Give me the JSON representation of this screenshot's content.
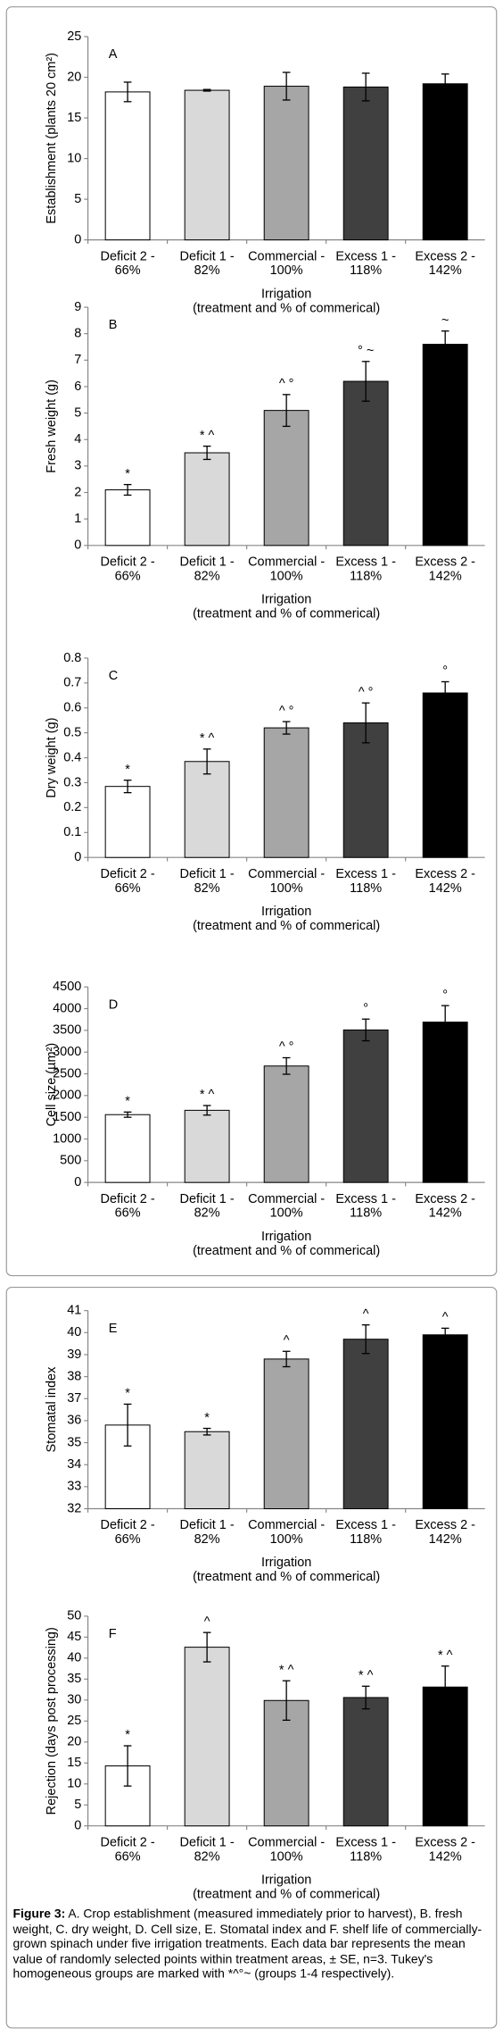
{
  "chart_data": [
    {
      "type": "bar",
      "panel": "A",
      "ylabel": "Establishment (plants 20 cm²)",
      "xlabel": [
        "Irrigation",
        "(treatment and % of commerical)"
      ],
      "categories": [
        [
          "Deficit 2 -",
          "66%"
        ],
        [
          "Deficit 1 -",
          "82%"
        ],
        [
          "Commercial -",
          "100%"
        ],
        [
          "Excess 1 -",
          "118%"
        ],
        [
          "Excess 2 -",
          "142%"
        ]
      ],
      "values": [
        18.2,
        18.4,
        18.9,
        18.8,
        19.2
      ],
      "errors": [
        1.2,
        0.1,
        1.7,
        1.7,
        1.2
      ],
      "colors": [
        "#ffffff",
        "#d9d9d9",
        "#a6a6a6",
        "#404040",
        "#000000"
      ],
      "ylim": [
        0,
        25
      ],
      "yticks": [
        0,
        5,
        10,
        15,
        20,
        25
      ]
    },
    {
      "type": "bar",
      "panel": "B",
      "ylabel": "Fresh weight (g)",
      "xlabel": [
        "Irrigation",
        "(treatment  and % of commerical)"
      ],
      "categories": [
        [
          "Deficit 2 -",
          "66%"
        ],
        [
          "Deficit 1 -",
          "82%"
        ],
        [
          "Commercial -",
          "100%"
        ],
        [
          "Excess 1 -",
          "118%"
        ],
        [
          "Excess 2 -",
          "142%"
        ]
      ],
      "values": [
        2.1,
        3.5,
        5.1,
        6.2,
        7.6
      ],
      "errors": [
        0.2,
        0.25,
        0.6,
        0.75,
        0.5
      ],
      "groups": [
        "*",
        "* ^",
        "^ °",
        "° ~",
        "~"
      ],
      "colors": [
        "#ffffff",
        "#d9d9d9",
        "#a6a6a6",
        "#404040",
        "#000000"
      ],
      "ylim": [
        0,
        9
      ],
      "yticks": [
        0,
        1,
        2,
        3,
        4,
        5,
        6,
        7,
        8,
        9
      ]
    },
    {
      "type": "bar",
      "panel": "C",
      "ylabel": "Dry weight (g)",
      "xlabel": [
        "Irrigation",
        "(treatment  and % of commerical)"
      ],
      "categories": [
        [
          "Deficit 2 -",
          "66%"
        ],
        [
          "Deficit 1 -",
          "82%"
        ],
        [
          "Commercial -",
          "100%"
        ],
        [
          "Excess 1 -",
          "118%"
        ],
        [
          "Excess 2 -",
          "142%"
        ]
      ],
      "values": [
        0.285,
        0.385,
        0.52,
        0.54,
        0.66
      ],
      "errors": [
        0.025,
        0.05,
        0.025,
        0.08,
        0.045
      ],
      "groups": [
        "*",
        "* ^",
        "^ °",
        "^ °",
        "°"
      ],
      "colors": [
        "#ffffff",
        "#d9d9d9",
        "#a6a6a6",
        "#404040",
        "#000000"
      ],
      "ylim": [
        0,
        0.8
      ],
      "yticks": [
        0,
        0.1,
        0.2,
        0.3,
        0.4,
        0.5,
        0.6,
        0.7,
        0.8
      ]
    },
    {
      "type": "bar",
      "panel": "D",
      "ylabel": "Cell size (µm²)",
      "xlabel": [
        "Irrigation",
        "(treatment and % of commerical)"
      ],
      "categories": [
        [
          "Deficit 2 -",
          "66%"
        ],
        [
          "Deficit 1 -",
          "82%"
        ],
        [
          "Commercial -",
          "100%"
        ],
        [
          "Excess 1 -",
          "118%"
        ],
        [
          "Excess 2 -",
          "142%"
        ]
      ],
      "values": [
        1560,
        1660,
        2680,
        3510,
        3690
      ],
      "errors": [
        60,
        110,
        190,
        250,
        380
      ],
      "groups": [
        "*",
        "*  ^",
        "^  °",
        "°",
        "°"
      ],
      "colors": [
        "#ffffff",
        "#d9d9d9",
        "#a6a6a6",
        "#404040",
        "#000000"
      ],
      "ylim": [
        0,
        4500
      ],
      "yticks": [
        0,
        500,
        1000,
        1500,
        2000,
        2500,
        3000,
        3500,
        4000,
        4500
      ]
    },
    {
      "type": "bar",
      "panel": "E",
      "ylabel": "Stomatal index",
      "xlabel": [
        "Irrigation",
        "(treatment and % of commerical)"
      ],
      "categories": [
        [
          "Deficit 2 -",
          "66%"
        ],
        [
          "Deficit 1 -",
          "82%"
        ],
        [
          "Commercial -",
          "100%"
        ],
        [
          "Excess 1 -",
          "118%"
        ],
        [
          "Excess 2 -",
          "142%"
        ]
      ],
      "values": [
        35.8,
        35.5,
        38.8,
        39.7,
        39.9
      ],
      "errors": [
        0.95,
        0.15,
        0.35,
        0.65,
        0.3
      ],
      "groups": [
        "*",
        "*",
        "^",
        "^",
        "^"
      ],
      "colors": [
        "#ffffff",
        "#d9d9d9",
        "#a6a6a6",
        "#404040",
        "#000000"
      ],
      "ylim": [
        32,
        41
      ],
      "yticks": [
        32,
        33,
        34,
        35,
        36,
        37,
        38,
        39,
        40,
        41
      ]
    },
    {
      "type": "bar",
      "panel": "F",
      "ylabel": "Rejection (days post processing)",
      "xlabel": [
        "Irrigation",
        "(treatment and % of commerical)"
      ],
      "categories": [
        [
          "Deficit 2 -",
          "66%"
        ],
        [
          "Deficit 1 -",
          "82%"
        ],
        [
          "Commercial -",
          "100%"
        ],
        [
          "Excess 1 -",
          "118%"
        ],
        [
          "Excess 2 -",
          "142%"
        ]
      ],
      "values": [
        14.3,
        42.6,
        29.9,
        30.6,
        33.1
      ],
      "errors": [
        4.8,
        3.5,
        4.7,
        2.7,
        5
      ],
      "groups": [
        "*",
        "^",
        "*  ^",
        "*  ^",
        "*  ^"
      ],
      "colors": [
        "#ffffff",
        "#d9d9d9",
        "#a6a6a6",
        "#404040",
        "#000000"
      ],
      "ylim": [
        0,
        50
      ],
      "yticks": [
        0,
        5,
        10,
        15,
        20,
        25,
        30,
        35,
        40,
        45,
        50
      ]
    }
  ],
  "caption": {
    "label": "Figure 3:",
    "text": "A. Crop establishment (measured immediately prior to harvest), B. fresh weight, C. dry weight, D. Cell size, E. Stomatal index and F. shelf life of commercially-grown spinach under five irrigation treatments. Each data bar represents the mean value of randomly selected points within treatment areas, ± SE, n=3. Tukey's homogeneous groups are marked with *^°~ (groups 1-4 respectively)."
  }
}
